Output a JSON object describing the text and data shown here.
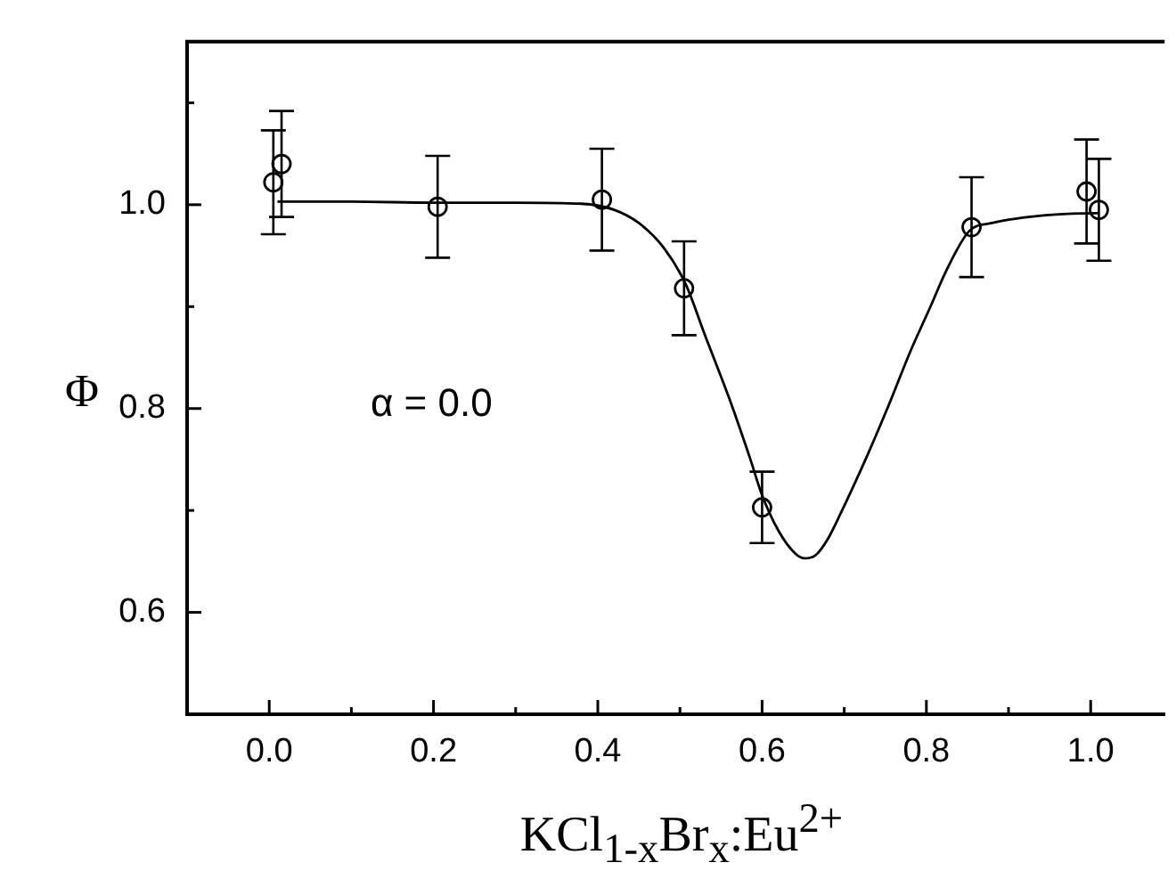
{
  "chart_data": {
    "type": "scatter",
    "xlabel": "KCl$_{1-x}$Br$_{x}$:Eu$^{2+}$",
    "ylabel": "Φ",
    "annotations": [
      "α = 0.0"
    ],
    "xlim": [
      -0.1,
      1.09
    ],
    "xticks": [
      {
        "value": 0,
        "label": "0.0"
      },
      {
        "value": 0.1,
        "label": null
      },
      0.2,
      {
        "value": 0.3,
        "label": null
      },
      0.4,
      {
        "value": 0.5,
        "label": null
      },
      0.6,
      {
        "value": 0.7,
        "label": null
      },
      0.8,
      {
        "value": 0.9,
        "label": null
      },
      {
        "value": 1,
        "label": "1.0"
      }
    ],
    "ylim": [
      0.5,
      1.16
    ],
    "yticks": [
      0.6,
      {
        "value": 0.7,
        "label": null
      },
      0.8,
      {
        "value": 0.9,
        "label": null
      },
      {
        "value": 1,
        "label": "1.0"
      },
      {
        "value": 1.1,
        "label": null
      }
    ],
    "series": [
      {
        "color": "#000000",
        "marker": "circle",
        "x": [
          0.005,
          0.015,
          0.205,
          0.405,
          0.505,
          0.6,
          0.855,
          0.995,
          1.01
        ],
        "values": [
          1.022,
          1.04,
          0.998,
          1.005,
          0.918,
          0.703,
          0.978,
          1.013,
          0.995
        ],
        "errors": [
          0.051,
          0.052,
          0.05,
          0.05,
          0.046,
          0.035,
          0.049,
          0.051,
          0.05
        ]
      },
      {
        "type": "line",
        "color": "#000000",
        "marker": "none",
        "line_style": "solid",
        "x": [
          0.01,
          0.1,
          0.2,
          0.3,
          0.38,
          0.42,
          0.45,
          0.48,
          0.507,
          0.53,
          0.56,
          0.585,
          0.6,
          0.62,
          0.64,
          0.652,
          0.665,
          0.68,
          0.695,
          0.727,
          0.755,
          0.781,
          0.805,
          0.824,
          0.852,
          0.88,
          0.95,
          1.01
        ],
        "values": [
          1.003,
          1.003,
          1.002,
          1.002,
          1.001,
          0.995,
          0.982,
          0.958,
          0.922,
          0.873,
          0.81,
          0.752,
          0.715,
          0.68,
          0.658,
          0.653,
          0.656,
          0.672,
          0.696,
          0.752,
          0.805,
          0.857,
          0.9,
          0.935,
          0.974,
          0.982,
          0.99,
          0.992
        ]
      }
    ]
  }
}
